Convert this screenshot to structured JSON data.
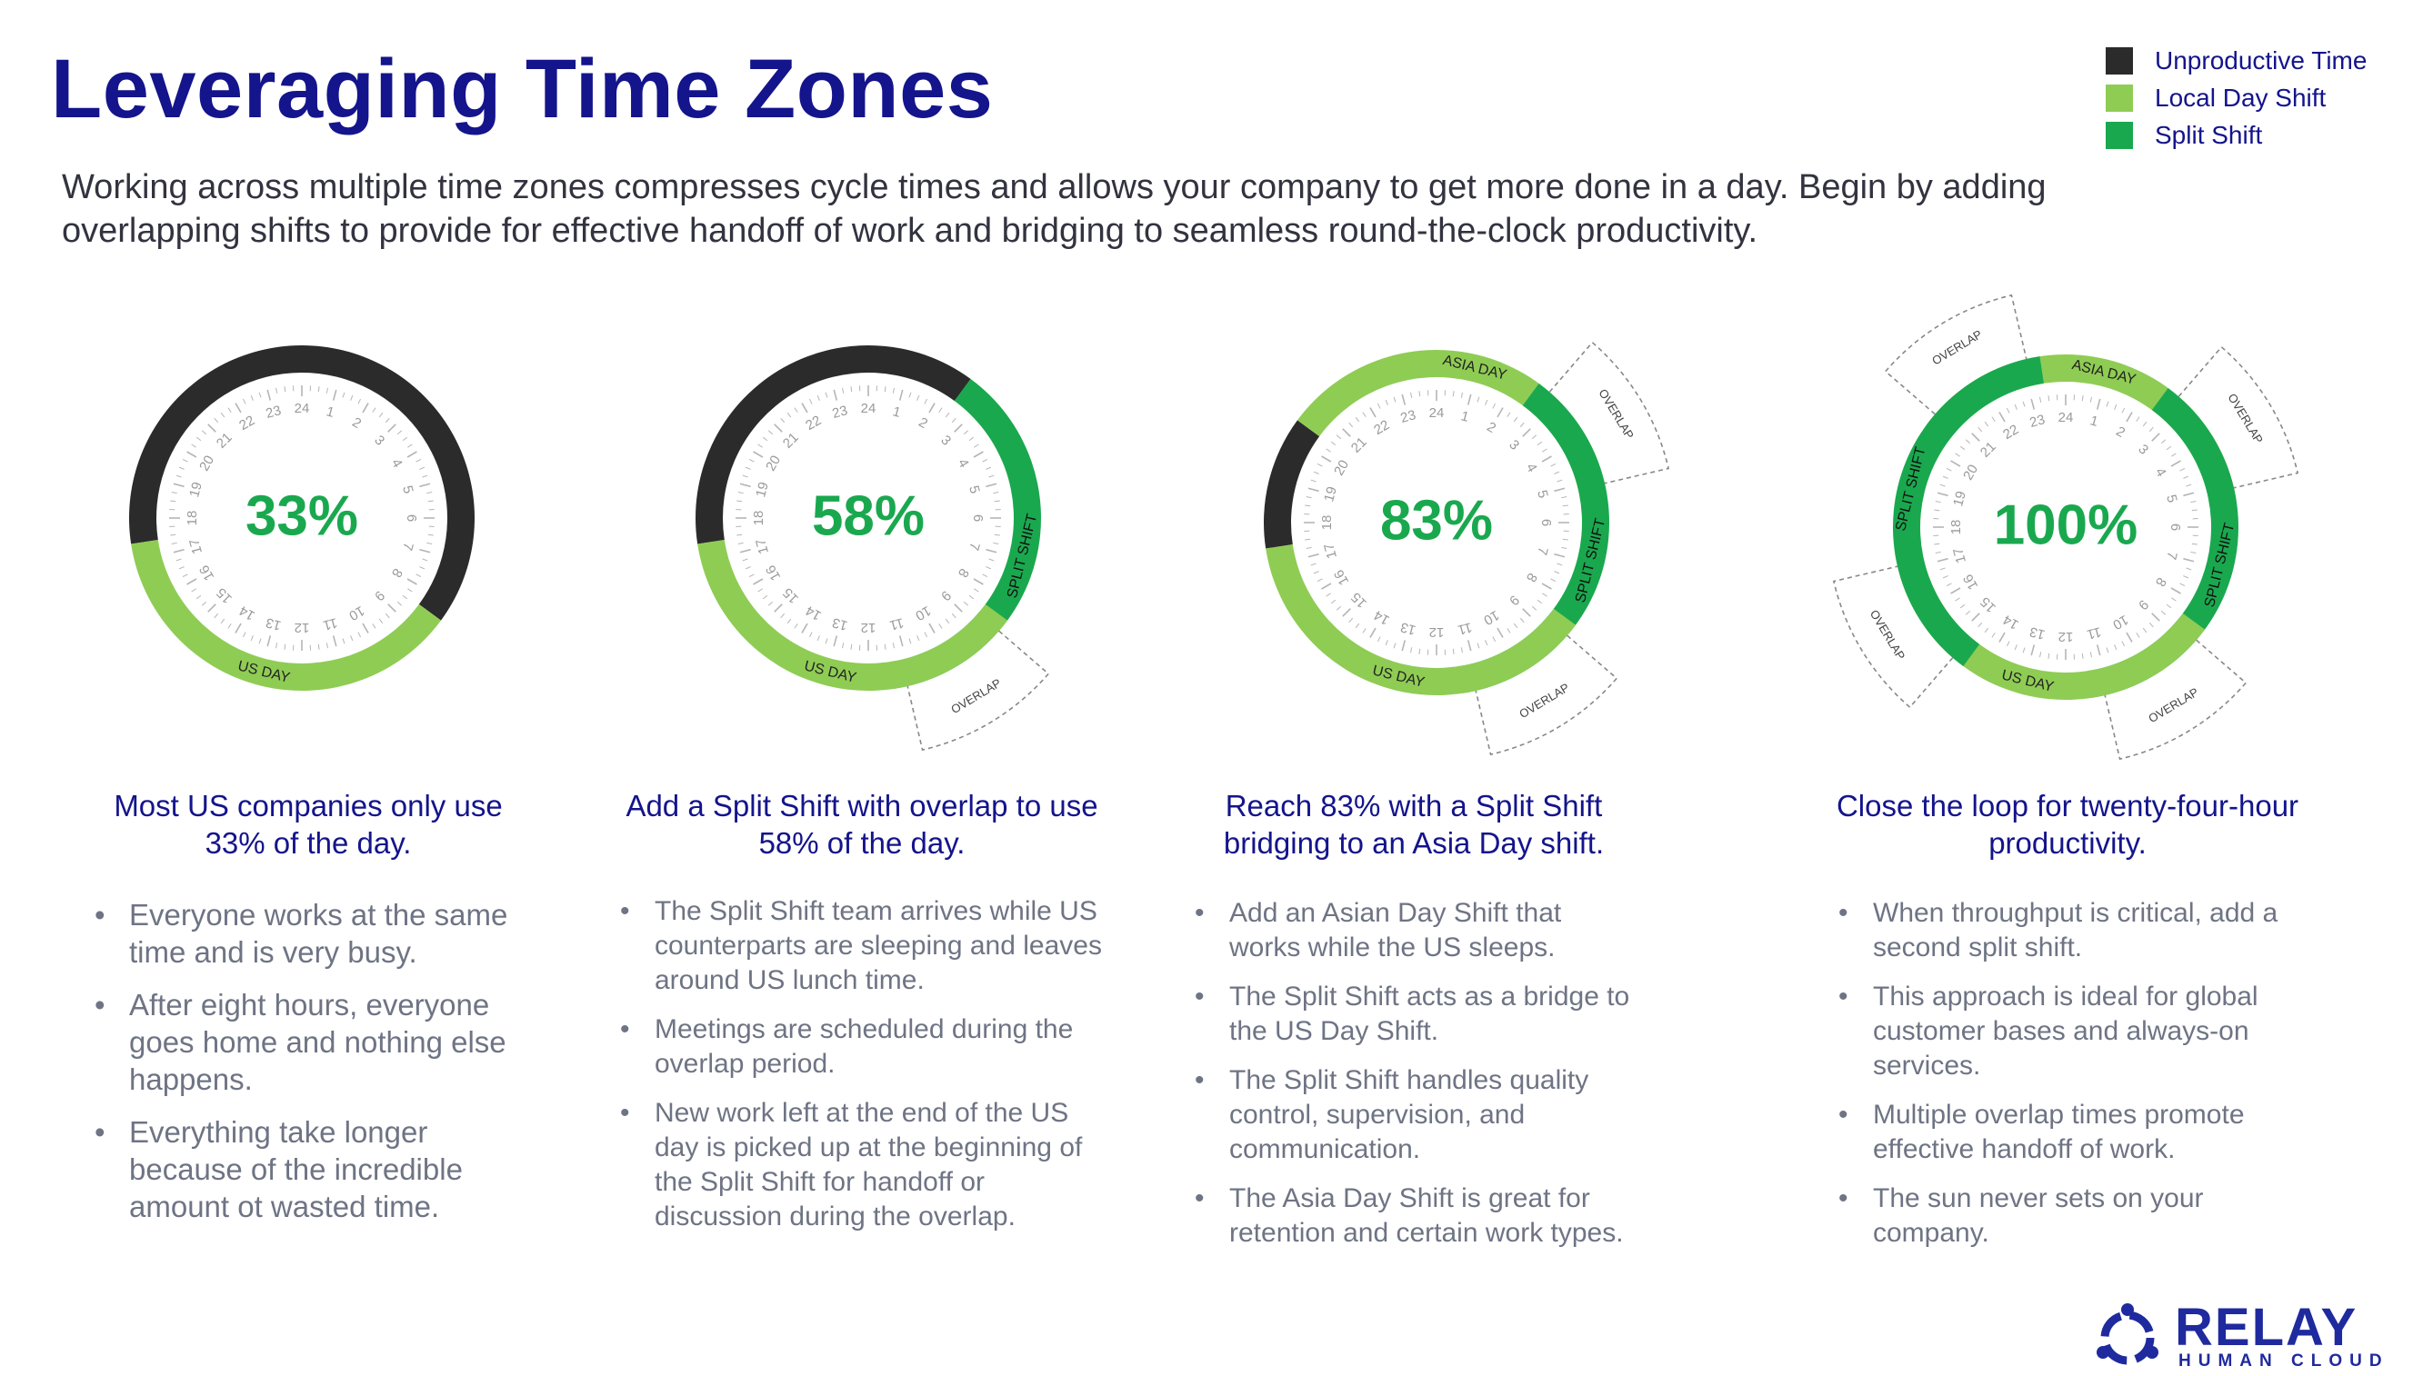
{
  "title": "Leveraging Time Zones",
  "intro": "Working across multiple time zones compresses cycle times and allows your company to get more done in a day.  Begin by adding overlapping shifts to provide for effective handoff of work and bridging to seamless round-the-clock productivity.",
  "colors": {
    "unproductive": "#2b2b2b",
    "local_day": "#8fcc54",
    "split": "#1aa84f",
    "title": "#14148c",
    "percent": "#1aa84f"
  },
  "legend": [
    {
      "label": "Unproductive Time",
      "color": "#2b2b2b"
    },
    {
      "label": "Local Day Shift",
      "color": "#8fcc54"
    },
    {
      "label": "Split Shift",
      "color": "#1aa84f"
    }
  ],
  "dials": [
    {
      "percent": "33%",
      "segments": [
        {
          "type": "unproductive",
          "from_hour": 17.5,
          "to_hour": 8.5
        },
        {
          "type": "local_day",
          "from_hour": 8.5,
          "to_hour": 17.5,
          "label": "US DAY"
        }
      ],
      "overlaps": []
    },
    {
      "percent": "58%",
      "segments": [
        {
          "type": "unproductive",
          "from_hour": 17.5,
          "to_hour": 2.5
        },
        {
          "type": "split",
          "from_hour": 2.5,
          "to_hour": 11.5,
          "label": "SPLIT SHIFT"
        },
        {
          "type": "local_day",
          "from_hour": 8.5,
          "to_hour": 17.5,
          "label": "US DAY"
        }
      ],
      "overlaps": [
        {
          "at_hour": 10,
          "label": "OVERLAP"
        }
      ]
    },
    {
      "percent": "83%",
      "segments": [
        {
          "type": "unproductive",
          "from_hour": 17.5,
          "to_hour": 20.5
        },
        {
          "type": "local_day",
          "from_hour": 20.5,
          "to_hour": 5.5,
          "label": "ASIA DAY"
        },
        {
          "type": "split",
          "from_hour": 2.5,
          "to_hour": 11.5,
          "label": "SPLIT SHIFT"
        },
        {
          "type": "local_day",
          "from_hour": 8.5,
          "to_hour": 17.5,
          "label": "US DAY"
        }
      ],
      "overlaps": [
        {
          "at_hour": 4,
          "label": "OVERLAP"
        },
        {
          "at_hour": 10,
          "label": "OVERLAP"
        }
      ]
    },
    {
      "percent": "100%",
      "segments": [
        {
          "type": "local_day",
          "from_hour": 20.5,
          "to_hour": 5.5,
          "label": "ASIA DAY"
        },
        {
          "type": "split",
          "from_hour": 2.5,
          "to_hour": 11.5,
          "label": "SPLIT SHIFT"
        },
        {
          "type": "local_day",
          "from_hour": 8.5,
          "to_hour": 17.5,
          "label": "US DAY"
        },
        {
          "type": "split",
          "from_hour": 14.5,
          "to_hour": 23.5,
          "label": "SPLIT SHIFT"
        }
      ],
      "overlaps": [
        {
          "at_hour": 4,
          "label": "OVERLAP"
        },
        {
          "at_hour": 10,
          "label": "OVERLAP"
        },
        {
          "at_hour": 16,
          "label": "OVERLAP"
        },
        {
          "at_hour": 22,
          "label": "OVERLAP"
        }
      ]
    }
  ],
  "columns": [
    {
      "heading": "Most US companies only use 33% of the day.",
      "bullets": [
        "Everyone works at the same time and is very busy.",
        "After eight hours, everyone goes home and nothing else happens.",
        "Everything take longer because of the incredible amount ot wasted time."
      ]
    },
    {
      "heading": "Add a Split Shift with overlap to use 58% of the day.",
      "bullets": [
        "The Split Shift team arrives while US counterparts are sleeping and leaves around US lunch time.",
        "Meetings are scheduled during the overlap period.",
        "New work left at the end of the US day is picked up at the beginning of the Split Shift for handoff or discussion during the overlap."
      ]
    },
    {
      "heading": "Reach 83% with a Split Shift bridging to an Asia Day shift.",
      "bullets": [
        "Add an Asian Day Shift that works while the US sleeps.",
        "The Split Shift acts as a bridge to the US Day Shift.",
        "The Split Shift handles quality control, supervision, and communication.",
        "The Asia Day Shift is great for retention and certain work types."
      ]
    },
    {
      "heading": "Close the loop for twenty-four-hour productivity.",
      "bullets": [
        "When throughput is critical, add a second split shift.",
        "This approach is ideal for global customer bases and always-on services.",
        "Multiple overlap times promote effective handoff of work.",
        "The sun never sets on your company."
      ]
    }
  ],
  "logo": {
    "name": "RELAY",
    "tagline": "HUMAN CLOUD"
  }
}
